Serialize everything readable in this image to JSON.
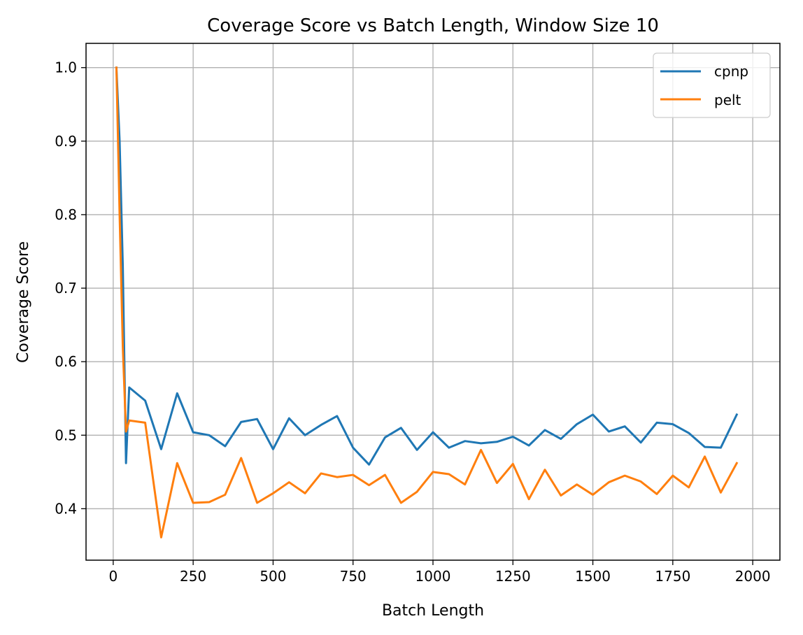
{
  "chart_data": {
    "type": "line",
    "title": "Coverage Score vs Batch Length, Window Size 10",
    "xlabel": "Batch Length",
    "ylabel": "Coverage Score",
    "xlim": [
      -85,
      2085
    ],
    "ylim": [
      0.33,
      1.033
    ],
    "xticks": [
      0,
      250,
      500,
      750,
      1000,
      1250,
      1500,
      1750,
      2000
    ],
    "yticks": [
      0.4,
      0.5,
      0.6,
      0.7,
      0.8,
      0.9,
      1.0
    ],
    "ytick_labels": [
      "0.4",
      "0.5",
      "0.6",
      "0.7",
      "0.8",
      "0.9",
      "1.0"
    ],
    "grid": true,
    "legend_position": "top-right",
    "series": [
      {
        "name": "cpnp",
        "color": "#1f77b4",
        "x": [
          10,
          20,
          30,
          40,
          50,
          100,
          150,
          200,
          250,
          300,
          350,
          400,
          450,
          500,
          550,
          600,
          650,
          700,
          750,
          800,
          850,
          900,
          950,
          1000,
          1050,
          1100,
          1150,
          1200,
          1250,
          1300,
          1350,
          1400,
          1450,
          1500,
          1550,
          1600,
          1650,
          1700,
          1750,
          1800,
          1850,
          1900,
          1950
        ],
        "y": [
          1.0,
          0.9,
          0.73,
          0.462,
          0.565,
          0.547,
          0.481,
          0.557,
          0.504,
          0.5,
          0.485,
          0.518,
          0.522,
          0.481,
          0.523,
          0.5,
          0.514,
          0.526,
          0.483,
          0.46,
          0.497,
          0.51,
          0.48,
          0.504,
          0.483,
          0.492,
          0.489,
          0.491,
          0.498,
          0.486,
          0.507,
          0.495,
          0.515,
          0.528,
          0.505,
          0.512,
          0.49,
          0.517,
          0.515,
          0.503,
          0.484,
          0.483,
          0.528
        ]
      },
      {
        "name": "pelt",
        "color": "#ff7f0e",
        "x": [
          10,
          20,
          30,
          40,
          50,
          100,
          150,
          200,
          250,
          300,
          350,
          400,
          450,
          500,
          550,
          600,
          650,
          700,
          750,
          800,
          850,
          900,
          950,
          1000,
          1050,
          1100,
          1150,
          1200,
          1250,
          1300,
          1350,
          1400,
          1450,
          1500,
          1550,
          1600,
          1650,
          1700,
          1750,
          1800,
          1850,
          1900,
          1950
        ],
        "y": [
          1.0,
          0.8,
          0.62,
          0.505,
          0.52,
          0.517,
          0.361,
          0.462,
          0.408,
          0.409,
          0.419,
          0.469,
          0.408,
          0.421,
          0.436,
          0.421,
          0.448,
          0.443,
          0.446,
          0.432,
          0.446,
          0.408,
          0.423,
          0.45,
          0.447,
          0.433,
          0.48,
          0.435,
          0.461,
          0.413,
          0.453,
          0.418,
          0.433,
          0.419,
          0.436,
          0.445,
          0.437,
          0.42,
          0.445,
          0.429,
          0.471,
          0.422,
          0.462
        ]
      }
    ]
  }
}
